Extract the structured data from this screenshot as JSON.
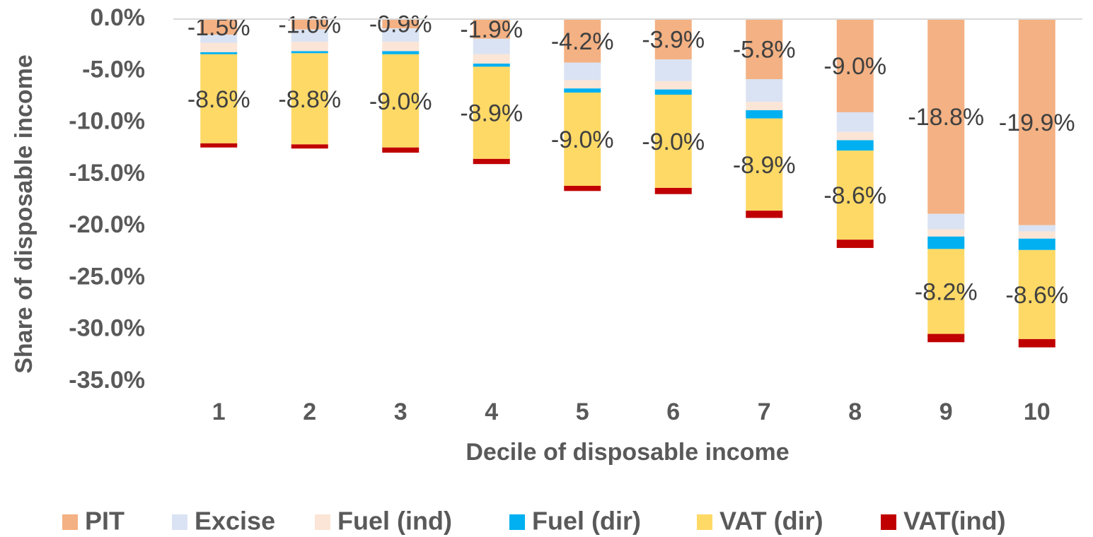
{
  "chart_data": {
    "type": "stacked_bar",
    "x_label": "Decile of disposable income",
    "y_label": "Share of disposable income",
    "categories": [
      "1",
      "2",
      "3",
      "4",
      "5",
      "6",
      "7",
      "8",
      "9",
      "10"
    ],
    "ylim": [
      -35,
      0
    ],
    "yticks": [
      {
        "value": 0,
        "label": "0.0%"
      },
      {
        "value": -5,
        "label": "-5.0%"
      },
      {
        "value": -10,
        "label": "-10.0%"
      },
      {
        "value": -15,
        "label": "-15.0%"
      },
      {
        "value": -20,
        "label": "-20.0%"
      },
      {
        "value": -25,
        "label": "-25.0%"
      },
      {
        "value": -30,
        "label": "-30.0%"
      },
      {
        "value": -35,
        "label": "-35.0%"
      }
    ],
    "legend": "bottom",
    "series": [
      {
        "name": "PIT",
        "color": "#f4b183",
        "values": [
          -1.5,
          -1.0,
          -0.9,
          -1.9,
          -4.2,
          -3.9,
          -5.8,
          -9.0,
          -18.8,
          -19.9
        ],
        "value_labels": [
          "-1.5%",
          "-1.0%",
          "-0.9%",
          "-1.9%",
          "-4.2%",
          "-3.9%",
          "-5.8%",
          "-9.0%",
          "-18.8%",
          "-19.9%"
        ]
      },
      {
        "name": "Excise",
        "color": "#dae3f3",
        "values": [
          -0.8,
          -1.2,
          -1.3,
          -1.5,
          -1.7,
          -2.1,
          -2.2,
          -1.9,
          -1.5,
          -0.6
        ]
      },
      {
        "name": "Fuel (ind)",
        "color": "#fbe5d6",
        "values": [
          -0.9,
          -0.9,
          -0.9,
          -0.9,
          -0.8,
          -0.8,
          -0.8,
          -0.8,
          -0.7,
          -0.7
        ]
      },
      {
        "name": "Fuel (dir)",
        "color": "#00b0f0",
        "values": [
          -0.2,
          -0.2,
          -0.3,
          -0.3,
          -0.4,
          -0.5,
          -0.8,
          -1.0,
          -1.2,
          -1.1
        ]
      },
      {
        "name": "VAT (dir)",
        "color": "#ffd966",
        "values": [
          -8.6,
          -8.8,
          -9.0,
          -8.9,
          -9.0,
          -9.0,
          -8.9,
          -8.6,
          -8.2,
          -8.6
        ],
        "value_labels": [
          "-8.6%",
          "-8.8%",
          "-9.0%",
          "-8.9%",
          "-9.0%",
          "-9.0%",
          "-8.9%",
          "-8.6%",
          "-8.2%",
          "-8.6%"
        ]
      },
      {
        "name": "VAT(ind)",
        "color": "#c00000",
        "values": [
          -0.4,
          -0.4,
          -0.5,
          -0.5,
          -0.5,
          -0.6,
          -0.7,
          -0.8,
          -0.8,
          -0.8
        ]
      }
    ]
  }
}
